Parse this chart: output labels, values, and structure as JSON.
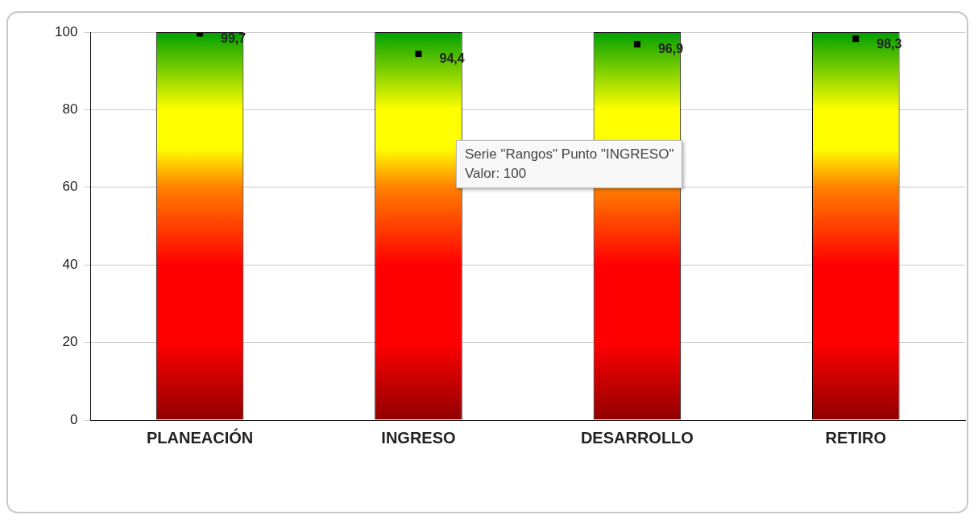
{
  "chart_data": {
    "type": "bar",
    "categories": [
      "PLANEACIÓN",
      "INGRESO",
      "DESARROLLO",
      "RETIRO"
    ],
    "series": [
      {
        "color": "#ff0000",
        "values": [
          100,
          100,
          100,
          100
        ]
      },
      {
        "type": "scatter",
        "color": "#000000",
        "x": [
          "PLANEACIÓN",
          "INGRESO",
          "DESARROLLO",
          "RETIRO"
        ],
        "values": [
          99.7,
          94.4,
          96.9,
          98.3
        ],
        "value_labels": [
          "99,7",
          "94,4",
          "96,9",
          "98,3"
        ]
      }
    ],
    "ylim": [
      0,
      100
    ],
    "yticks": [
      0,
      20,
      40,
      60,
      80,
      100
    ],
    "grid": "y",
    "legend": false,
    "annotations": [
      "Serie \"Rangos\" Punto \"INGRESO\"\nValor: 100"
    ]
  }
}
